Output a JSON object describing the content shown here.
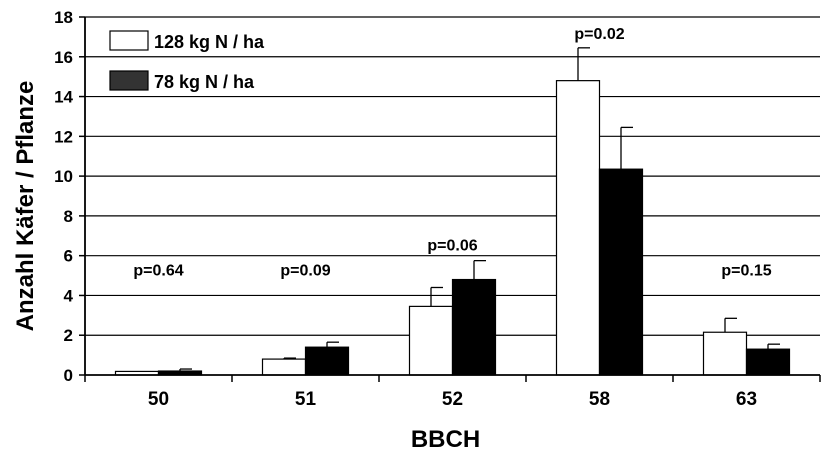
{
  "chart_data": {
    "type": "bar",
    "xlabel": "BBCH",
    "ylabel": "Anzahl Käfer / Pflanze",
    "ylim": [
      0,
      18
    ],
    "yticks": [
      0,
      2,
      4,
      6,
      8,
      10,
      12,
      14,
      16,
      18
    ],
    "grid": "horizontal",
    "legend_position": "top-left",
    "categories": [
      "50",
      "51",
      "52",
      "58",
      "63"
    ],
    "series": [
      {
        "name": "128 kg N / ha",
        "color": "#ffffff",
        "values": [
          0.18,
          0.8,
          3.45,
          14.8,
          2.15
        ],
        "errors": [
          0.0,
          0.05,
          0.95,
          1.65,
          0.7
        ]
      },
      {
        "name": "78 kg N / ha",
        "color": "#000000",
        "values": [
          0.2,
          1.4,
          4.8,
          10.35,
          1.3
        ],
        "errors": [
          0.1,
          0.25,
          0.95,
          2.1,
          0.25
        ]
      }
    ],
    "annotations": [
      "p=0.64",
      "p=0.09",
      "p=0.06",
      "p=0.02",
      "p=0.15"
    ]
  }
}
